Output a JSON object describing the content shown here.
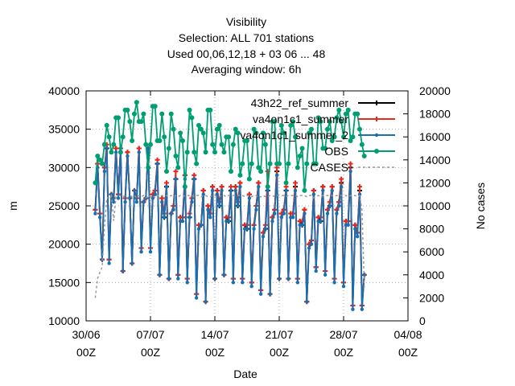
{
  "chart_data": {
    "type": "line",
    "title_lines": [
      "Visibility",
      "Selection: ALL     701 stations",
      "Used  00,06,12,18  + 03 06 ... 48",
      "Averaging window:   6h"
    ],
    "xlabel": "Date",
    "ylabel": "m",
    "y2label": "No cases",
    "ylim": [
      10000,
      40000
    ],
    "y2lim": [
      0,
      20000
    ],
    "yticks": [
      "10000",
      "15000",
      "20000",
      "25000",
      "30000",
      "35000",
      "40000"
    ],
    "y2ticks": [
      "0",
      "2000",
      "4000",
      "6000",
      "8000",
      "10000",
      "12000",
      "14000",
      "16000",
      "18000",
      "20000"
    ],
    "xticks": [
      {
        "day": 0,
        "line1": "30/06",
        "line2": "00Z"
      },
      {
        "day": 7,
        "line1": "07/07",
        "line2": "00Z"
      },
      {
        "day": 14,
        "line1": "14/07",
        "line2": "00Z"
      },
      {
        "day": 21,
        "line1": "21/07",
        "line2": "00Z"
      },
      {
        "day": 28,
        "line1": "28/07",
        "line2": "00Z"
      },
      {
        "day": 35,
        "line1": "04/08",
        "line2": "00Z"
      }
    ],
    "xlim": [
      0,
      35
    ],
    "grid": true,
    "legend_position": "top-right",
    "x_start": 1.0,
    "x_step": 0.25,
    "series": [
      {
        "name": "43h22_ref_summer",
        "color": "#000000",
        "marker": "plus",
        "axis": "y1",
        "values": [
          24500,
          30500,
          24000,
          18000,
          30000,
          32500,
          18000,
          26500,
          26000,
          32500,
          26500,
          32500,
          16500,
          26000,
          32000,
          26000,
          17500,
          27000,
          26000,
          32500,
          19500,
          25500,
          26000,
          32500,
          19500,
          26500,
          27000,
          30500,
          16000,
          26000,
          23500,
          27500,
          15500,
          24000,
          25000,
          28500,
          16000,
          23500,
          23500,
          29000,
          15500,
          23500,
          26000,
          28500,
          13500,
          22500,
          22500,
          27000,
          12500,
          25000,
          24000,
          27500,
          15500,
          27000,
          25000,
          27500,
          16000,
          23500,
          23000,
          27000,
          15500,
          27500,
          25000,
          28000,
          15500,
          22500,
          22000,
          26500,
          15000,
          22500,
          25000,
          28000,
          14000,
          21500,
          22000,
          27000,
          13500,
          23500,
          24500,
          29500,
          15500,
          24000,
          24500,
          27000,
          15500,
          24000,
          24000,
          27500,
          15500,
          23000,
          22500,
          24500,
          12500,
          20000,
          20500,
          27000,
          17000,
          23500,
          23000,
          27500,
          16500,
          24500,
          25000,
          27500,
          15500,
          24500,
          25500,
          28000,
          15000,
          23000,
          23000,
          30000,
          12000,
          22500,
          21500,
          27000,
          12000,
          16000
        ]
      },
      {
        "name": "va4on1c1_summer",
        "color": "#e8281e",
        "marker": "plus",
        "axis": "y1",
        "values": [
          24500,
          30500,
          24000,
          18000,
          30000,
          33000,
          18000,
          26500,
          26000,
          32500,
          26500,
          32500,
          16500,
          26000,
          32000,
          26000,
          17500,
          27000,
          26000,
          32500,
          19500,
          25500,
          26000,
          32500,
          19500,
          26500,
          27000,
          31000,
          16000,
          26000,
          24000,
          28000,
          15500,
          24000,
          25000,
          29500,
          16000,
          23500,
          23500,
          29000,
          15500,
          24000,
          26000,
          29000,
          13500,
          22500,
          22500,
          27000,
          12500,
          25000,
          24000,
          27500,
          15500,
          27000,
          25500,
          27500,
          16000,
          23500,
          23500,
          27500,
          15500,
          27500,
          25500,
          28000,
          15500,
          22500,
          22500,
          26500,
          15000,
          22500,
          25000,
          28000,
          14000,
          21500,
          22500,
          29500,
          13500,
          23500,
          24500,
          30000,
          15500,
          24000,
          24500,
          27500,
          15500,
          24000,
          24000,
          28000,
          15500,
          23000,
          23000,
          24500,
          12500,
          20000,
          20500,
          27000,
          17000,
          23500,
          23500,
          27500,
          16500,
          24500,
          25500,
          27500,
          15500,
          24500,
          25500,
          28500,
          15000,
          23000,
          23000,
          30500,
          12000,
          22500,
          21500,
          27500,
          12000,
          16000
        ]
      },
      {
        "name": "va4on1c1_summer_2",
        "color": "#1870b0",
        "marker": "cross",
        "axis": "y1",
        "values": [
          24000,
          30000,
          23500,
          18000,
          29500,
          32500,
          17500,
          26500,
          25500,
          32000,
          26000,
          32500,
          16500,
          25500,
          31500,
          26000,
          17500,
          27000,
          25500,
          32000,
          19000,
          25500,
          26000,
          32500,
          19000,
          26000,
          26500,
          30500,
          16000,
          25500,
          23500,
          27500,
          15500,
          24000,
          24500,
          28500,
          15500,
          23000,
          23000,
          28500,
          15000,
          23500,
          25500,
          28500,
          13000,
          22000,
          22500,
          26500,
          12500,
          24500,
          23500,
          27000,
          15500,
          26500,
          25000,
          27000,
          16000,
          23000,
          23000,
          27000,
          15000,
          27000,
          25000,
          27500,
          15000,
          22000,
          22000,
          26000,
          14500,
          22000,
          24500,
          27500,
          13500,
          21000,
          22000,
          27000,
          13500,
          23000,
          24000,
          29000,
          15500,
          23500,
          24000,
          27000,
          15500,
          23500,
          23500,
          27000,
          15000,
          22500,
          22500,
          24000,
          12500,
          19500,
          20000,
          26500,
          16500,
          23000,
          23000,
          27000,
          16000,
          24000,
          25000,
          27000,
          15000,
          24000,
          25000,
          27500,
          14500,
          22500,
          22500,
          29500,
          11500,
          22000,
          21000,
          26500,
          11500,
          16000
        ]
      },
      {
        "name": "OBS",
        "color": "#009e73",
        "marker": "star",
        "axis": "y1",
        "values": [
          28000,
          31500,
          31000,
          30500,
          33000,
          35500,
          34000,
          32000,
          33000,
          36500,
          36500,
          32000,
          34000,
          37500,
          37500,
          36000,
          33500,
          37000,
          38500,
          36000,
          36000,
          37000,
          33000,
          30000,
          33000,
          38000,
          38000,
          33500,
          33500,
          37000,
          34000,
          29500,
          32500,
          37000,
          35000,
          31500,
          30000,
          34500,
          33500,
          27500,
          32000,
          37500,
          36500,
          32000,
          30500,
          35500,
          35000,
          34500,
          32000,
          37500,
          37500,
          33000,
          32000,
          35000,
          35500,
          33000,
          32000,
          34000,
          34000,
          29500,
          33000,
          35000,
          34500,
          29000,
          30500,
          33500,
          33500,
          28500,
          30500,
          35000,
          34500,
          30000,
          29500,
          34500,
          33000,
          27500,
          30500,
          36000,
          36000,
          30500,
          30500,
          35500,
          34500,
          28000,
          30500,
          35500,
          36000,
          34000,
          30000,
          31500,
          32500,
          27000,
          30500,
          34500,
          35000,
          30500,
          30500,
          36500,
          36000,
          32500,
          32500,
          35000,
          36000,
          33500,
          34000,
          36500,
          37500,
          36000,
          34000,
          37000,
          37500,
          33500,
          34000,
          37000,
          37000,
          35000,
          33000,
          31500
        ]
      },
      {
        "name": "CASES",
        "color": "#999999",
        "marker": "none",
        "axis": "y2",
        "dashed": true,
        "values": [
          2000,
          3700,
          4200,
          4700,
          8200,
          10700,
          10700,
          10900,
          8700,
          10800,
          10900,
          10900,
          10800,
          10900,
          10700,
          10900,
          10800,
          10900,
          10700,
          10900,
          10800,
          10900,
          10700,
          10900,
          10800,
          10900,
          10700,
          10900,
          10800,
          10900,
          10900,
          10900,
          10800,
          10900,
          10800,
          10900,
          10800,
          10900,
          10800,
          10900,
          10900,
          10900,
          10900,
          10800,
          10900,
          10900,
          10800,
          10900,
          10900,
          10800,
          10800,
          10900,
          10900,
          10800,
          10800,
          10900,
          10900,
          10800,
          10900,
          10900,
          10900,
          10900,
          10900,
          10900,
          10900,
          10800,
          10900,
          10900,
          10800,
          10900,
          10900,
          10700,
          10800,
          10900,
          10800,
          10800,
          10900,
          10900,
          10800,
          10900,
          10900,
          10900,
          10900,
          10800,
          10900,
          10900,
          10900,
          10900,
          10800,
          10900,
          10900,
          10900,
          10800,
          10900,
          10900,
          10700,
          10800,
          10900,
          10800,
          10900,
          10900,
          10900,
          10900,
          10900,
          10800,
          10900,
          10900,
          10900,
          10900,
          10900,
          10800,
          10900,
          10900,
          10900,
          10800,
          10900,
          9600,
          2900
        ]
      }
    ]
  }
}
